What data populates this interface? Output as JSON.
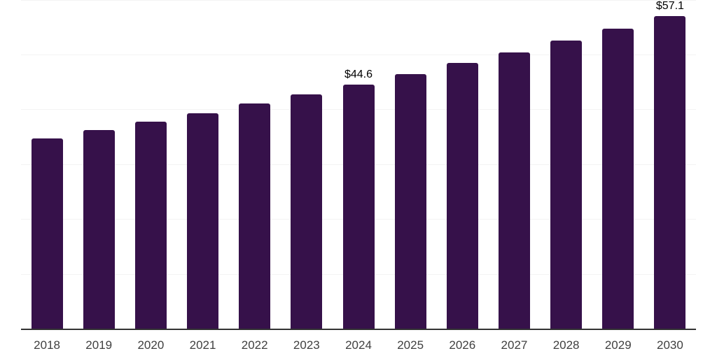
{
  "chart_data": {
    "type": "bar",
    "title": "",
    "xlabel": "",
    "ylabel": "",
    "categories": [
      "2018",
      "2019",
      "2020",
      "2021",
      "2022",
      "2023",
      "2024",
      "2025",
      "2026",
      "2027",
      "2028",
      "2029",
      "2030"
    ],
    "values": [
      34.8,
      36.3,
      37.9,
      39.4,
      41.1,
      42.8,
      44.6,
      46.5,
      48.5,
      50.5,
      52.6,
      54.8,
      57.1
    ],
    "annotations": [
      {
        "category": "2024",
        "text": "$44.6"
      },
      {
        "category": "2030",
        "text": "$57.1"
      }
    ],
    "ylim": [
      0,
      60
    ],
    "gridline_interval": 10,
    "grid": "horizontal-only",
    "legend_position": "none",
    "y_tick_labels_visible": false,
    "colors": {
      "bar": "#36114a",
      "axis_line": "#333333",
      "gridline": "#f3f3f3",
      "tick_label": "#404040",
      "value_label": "#000000",
      "background": "#ffffff"
    }
  }
}
